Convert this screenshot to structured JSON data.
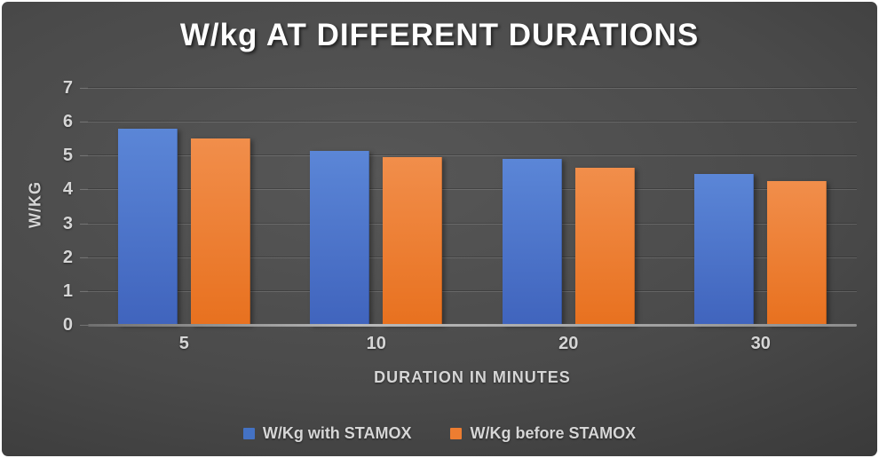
{
  "slide": {
    "border_color": "#ffffff",
    "background_center": "#575757",
    "background_edge": "#242424",
    "text_color": "#d6d6d6",
    "title_color": "#ffffff",
    "gridline_color": "rgba(255,255,255,0.14)"
  },
  "chart_data": {
    "type": "bar",
    "title": "W/kg AT DIFFERENT DURATIONS",
    "xlabel": "DURATION IN MINUTES",
    "ylabel": "W/KG",
    "categories": [
      "5",
      "10",
      "20",
      "30"
    ],
    "series": [
      {
        "name": "W/Kg with STAMOX",
        "color": "#4472C4",
        "gradient_top": "#5b86d7",
        "gradient_bottom": "#4064bd",
        "values": [
          5.8,
          5.15,
          4.9,
          4.45
        ]
      },
      {
        "name": "W/Kg before STAMOX",
        "color": "#ED7D31",
        "gradient_top": "#f18e4b",
        "gradient_bottom": "#e8711f",
        "values": [
          5.5,
          4.95,
          4.65,
          4.25
        ]
      }
    ],
    "ylim": [
      0,
      7
    ],
    "ytick_step": 1,
    "grid": true,
    "legend_position": "bottom"
  }
}
